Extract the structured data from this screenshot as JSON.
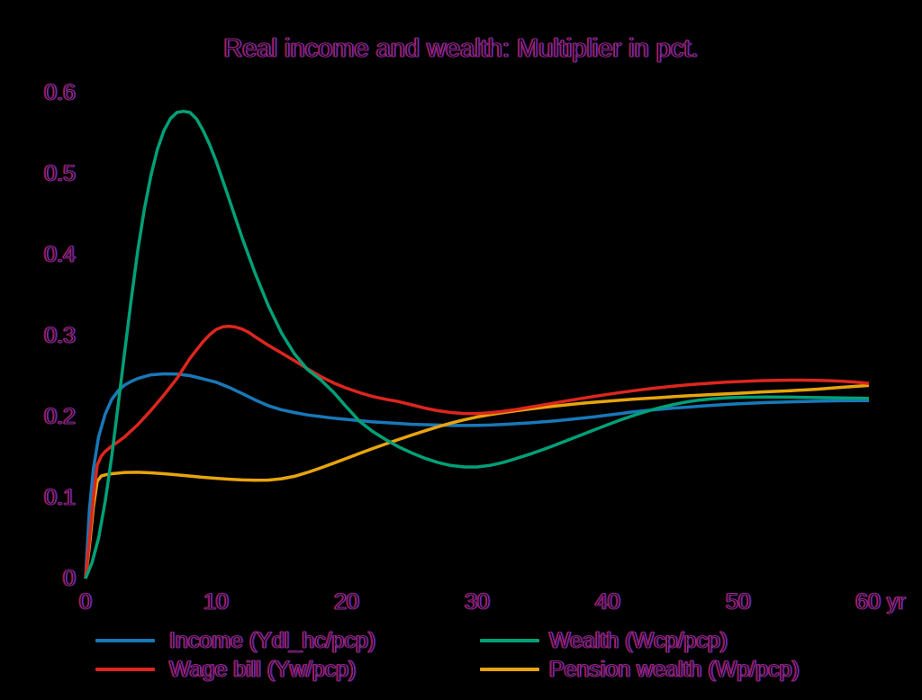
{
  "title": "Real income and wealth: Multiplier in pct.",
  "colors": {
    "background": "#000000",
    "text_outline_purple": "#93268f",
    "income_blue": "#1878b8",
    "wealth_green": "#00a077",
    "wage_red": "#dc261e",
    "pension_orange": "#e8a40e"
  },
  "chart_data": {
    "type": "line",
    "title": "Real income and wealth: Multiplier in pct.",
    "xlabel": "yr",
    "ylabel": "",
    "xlim": [
      0,
      60
    ],
    "ylim": [
      0,
      0.6
    ],
    "grid": false,
    "legend_position": "bottom-two-columns",
    "x_tick_labels": [
      "0",
      "10",
      "20",
      "30",
      "40",
      "50",
      "60 yr"
    ],
    "y_tick_labels": [
      "0.6",
      "0.5",
      "0.4",
      "0.3",
      "0.2",
      "0.1",
      "0"
    ],
    "series": [
      {
        "name": "Income (Ydl_hc/pcp)",
        "color": "#1878b8",
        "points": [
          [
            0,
            0
          ],
          [
            0.3,
            0.085
          ],
          [
            0.6,
            0.135
          ],
          [
            1,
            0.175
          ],
          [
            1.5,
            0.203
          ],
          [
            2,
            0.221
          ],
          [
            2.5,
            0.232
          ],
          [
            3,
            0.239
          ],
          [
            3.5,
            0.2435
          ],
          [
            4,
            0.247
          ],
          [
            5,
            0.2515
          ],
          [
            6,
            0.2528
          ],
          [
            7,
            0.2525
          ],
          [
            8,
            0.2505
          ],
          [
            9,
            0.2465
          ],
          [
            10,
            0.2425
          ],
          [
            11,
            0.236
          ],
          [
            12,
            0.2285
          ],
          [
            13,
            0.2205
          ],
          [
            14,
            0.2135
          ],
          [
            15,
            0.2085
          ],
          [
            16,
            0.205
          ],
          [
            17,
            0.202
          ],
          [
            18,
            0.2
          ],
          [
            19,
            0.198
          ],
          [
            20,
            0.1965
          ],
          [
            21,
            0.195
          ],
          [
            22,
            0.1935
          ],
          [
            23,
            0.1925
          ],
          [
            24,
            0.1915
          ],
          [
            25,
            0.1905
          ],
          [
            26,
            0.19
          ],
          [
            27,
            0.1895
          ],
          [
            28,
            0.189
          ],
          [
            29,
            0.189
          ],
          [
            30,
            0.1892
          ],
          [
            31,
            0.1896
          ],
          [
            32,
            0.1903
          ],
          [
            33,
            0.1912
          ],
          [
            34,
            0.1922
          ],
          [
            35,
            0.1934
          ],
          [
            36,
            0.1948
          ],
          [
            37,
            0.1963
          ],
          [
            38,
            0.198
          ],
          [
            39,
            0.1998
          ],
          [
            40,
            0.2018
          ],
          [
            41,
            0.2038
          ],
          [
            42,
            0.206
          ],
          [
            43,
            0.2076
          ],
          [
            44,
            0.209
          ],
          [
            45,
            0.2104
          ],
          [
            46,
            0.2116
          ],
          [
            47,
            0.2128
          ],
          [
            48,
            0.2139
          ],
          [
            49,
            0.2149
          ],
          [
            50,
            0.2158
          ],
          [
            52,
            0.2172
          ],
          [
            54,
            0.2182
          ],
          [
            56,
            0.219
          ],
          [
            58,
            0.2195
          ],
          [
            60,
            0.2198
          ]
        ]
      },
      {
        "name": "Wealth (Wcp/pcp)",
        "color": "#00a077",
        "points": [
          [
            0,
            0
          ],
          [
            0.5,
            0.02
          ],
          [
            1,
            0.05
          ],
          [
            1.5,
            0.095
          ],
          [
            2,
            0.15
          ],
          [
            2.5,
            0.215
          ],
          [
            3,
            0.28
          ],
          [
            3.5,
            0.345
          ],
          [
            4,
            0.405
          ],
          [
            4.5,
            0.456
          ],
          [
            5,
            0.497
          ],
          [
            5.5,
            0.53
          ],
          [
            6,
            0.553
          ],
          [
            6.5,
            0.568
          ],
          [
            7,
            0.5755
          ],
          [
            7.5,
            0.577
          ],
          [
            8,
            0.5755
          ],
          [
            8.5,
            0.5675
          ],
          [
            9,
            0.5535
          ],
          [
            9.5,
            0.536
          ],
          [
            10,
            0.5155
          ],
          [
            11,
            0.4685
          ],
          [
            12,
            0.4205
          ],
          [
            13,
            0.3765
          ],
          [
            14,
            0.337
          ],
          [
            15,
            0.3035
          ],
          [
            16,
            0.2775
          ],
          [
            17,
            0.258
          ],
          [
            18,
            0.2455
          ],
          [
            19,
            0.23
          ],
          [
            20,
            0.2115
          ],
          [
            21,
            0.194
          ],
          [
            22,
            0.1815
          ],
          [
            23,
            0.1715
          ],
          [
            24,
            0.1625
          ],
          [
            25,
            0.155
          ],
          [
            26,
            0.1485
          ],
          [
            27,
            0.1432
          ],
          [
            28,
            0.1395
          ],
          [
            29,
            0.1378
          ],
          [
            30,
            0.1378
          ],
          [
            31,
            0.1398
          ],
          [
            32,
            0.1435
          ],
          [
            33,
            0.1482
          ],
          [
            34,
            0.1535
          ],
          [
            35,
            0.159
          ],
          [
            36,
            0.165
          ],
          [
            37,
            0.1712
          ],
          [
            38,
            0.1775
          ],
          [
            39,
            0.1838
          ],
          [
            40,
            0.19
          ],
          [
            41,
            0.196
          ],
          [
            42,
            0.2015
          ],
          [
            43,
            0.2065
          ],
          [
            44,
            0.211
          ],
          [
            45,
            0.2148
          ],
          [
            46,
            0.218
          ],
          [
            47,
            0.2203
          ],
          [
            48,
            0.222
          ],
          [
            49,
            0.2231
          ],
          [
            50,
            0.2238
          ],
          [
            52,
            0.2242
          ],
          [
            54,
            0.224
          ],
          [
            56,
            0.2235
          ],
          [
            58,
            0.223
          ],
          [
            60,
            0.2225
          ]
        ]
      },
      {
        "name": "Wage bill (Yw/pcp)",
        "color": "#dc261e",
        "points": [
          [
            0,
            0
          ],
          [
            0.3,
            0.048
          ],
          [
            0.6,
            0.1
          ],
          [
            0.9,
            0.14
          ],
          [
            1.2,
            0.151
          ],
          [
            1.5,
            0.157
          ],
          [
            2,
            0.1635
          ],
          [
            2.5,
            0.169
          ],
          [
            3,
            0.175
          ],
          [
            4,
            0.19
          ],
          [
            5,
            0.2075
          ],
          [
            6,
            0.2265
          ],
          [
            7,
            0.247
          ],
          [
            8,
            0.272
          ],
          [
            9,
            0.2925
          ],
          [
            9.5,
            0.301
          ],
          [
            10,
            0.3075
          ],
          [
            10.5,
            0.3108
          ],
          [
            11,
            0.3115
          ],
          [
            11.5,
            0.3105
          ],
          [
            12,
            0.308
          ],
          [
            12.5,
            0.304
          ],
          [
            13,
            0.2985
          ],
          [
            14,
            0.288
          ],
          [
            15,
            0.2785
          ],
          [
            16,
            0.269
          ],
          [
            17,
            0.259
          ],
          [
            18,
            0.2495
          ],
          [
            19,
            0.2415
          ],
          [
            20,
            0.235
          ],
          [
            21,
            0.2295
          ],
          [
            22,
            0.2248
          ],
          [
            23,
            0.2213
          ],
          [
            24,
            0.2185
          ],
          [
            25,
            0.2145
          ],
          [
            26,
            0.2105
          ],
          [
            27,
            0.2072
          ],
          [
            28,
            0.205
          ],
          [
            29,
            0.2038
          ],
          [
            30,
            0.2038
          ],
          [
            31,
            0.2048
          ],
          [
            32,
            0.2065
          ],
          [
            33,
            0.2088
          ],
          [
            34,
            0.2115
          ],
          [
            35,
            0.2142
          ],
          [
            36,
            0.217
          ],
          [
            37,
            0.2198
          ],
          [
            38,
            0.2225
          ],
          [
            39,
            0.225
          ],
          [
            40,
            0.2275
          ],
          [
            41,
            0.2298
          ],
          [
            42,
            0.232
          ],
          [
            43,
            0.234
          ],
          [
            44,
            0.2358
          ],
          [
            45,
            0.2375
          ],
          [
            46,
            0.239
          ],
          [
            47,
            0.2403
          ],
          [
            48,
            0.2414
          ],
          [
            49,
            0.2424
          ],
          [
            50,
            0.2432
          ],
          [
            51,
            0.2439
          ],
          [
            52,
            0.2444
          ],
          [
            53,
            0.2448
          ],
          [
            54,
            0.245
          ],
          [
            55,
            0.245
          ],
          [
            56,
            0.2448
          ],
          [
            57,
            0.2443
          ],
          [
            58,
            0.2436
          ],
          [
            59,
            0.2424
          ],
          [
            60,
            0.241
          ]
        ]
      },
      {
        "name": "Pension wealth (Wp/pcp)",
        "color": "#e8a40e",
        "points": [
          [
            0,
            0
          ],
          [
            0.3,
            0.04
          ],
          [
            0.6,
            0.088
          ],
          [
            0.9,
            0.12
          ],
          [
            1.2,
            0.1265
          ],
          [
            1.5,
            0.128
          ],
          [
            2,
            0.1295
          ],
          [
            3,
            0.131
          ],
          [
            4,
            0.1312
          ],
          [
            5,
            0.1305
          ],
          [
            6,
            0.1295
          ],
          [
            7,
            0.128
          ],
          [
            8,
            0.1265
          ],
          [
            9,
            0.125
          ],
          [
            10,
            0.1238
          ],
          [
            11,
            0.1227
          ],
          [
            12,
            0.1218
          ],
          [
            13,
            0.1213
          ],
          [
            14,
            0.1215
          ],
          [
            15,
            0.1232
          ],
          [
            16,
            0.1262
          ],
          [
            17,
            0.131
          ],
          [
            18,
            0.1365
          ],
          [
            19,
            0.1425
          ],
          [
            20,
            0.1485
          ],
          [
            21,
            0.1545
          ],
          [
            22,
            0.1605
          ],
          [
            23,
            0.1662
          ],
          [
            24,
            0.1718
          ],
          [
            25,
            0.1772
          ],
          [
            26,
            0.1825
          ],
          [
            27,
            0.1875
          ],
          [
            28,
            0.192
          ],
          [
            29,
            0.196
          ],
          [
            30,
            0.1995
          ],
          [
            31,
            0.2025
          ],
          [
            32,
            0.205
          ],
          [
            33,
            0.2072
          ],
          [
            34,
            0.2092
          ],
          [
            35,
            0.2112
          ],
          [
            36,
            0.213
          ],
          [
            37,
            0.2148
          ],
          [
            38,
            0.2163
          ],
          [
            39,
            0.2178
          ],
          [
            40,
            0.219
          ],
          [
            41,
            0.2203
          ],
          [
            42,
            0.2215
          ],
          [
            43,
            0.2225
          ],
          [
            44,
            0.2235
          ],
          [
            45,
            0.2245
          ],
          [
            46,
            0.2255
          ],
          [
            48,
            0.2272
          ],
          [
            50,
            0.2288
          ],
          [
            52,
            0.2305
          ],
          [
            54,
            0.232
          ],
          [
            56,
            0.2338
          ],
          [
            58,
            0.2362
          ],
          [
            60,
            0.2385
          ]
        ]
      }
    ]
  }
}
